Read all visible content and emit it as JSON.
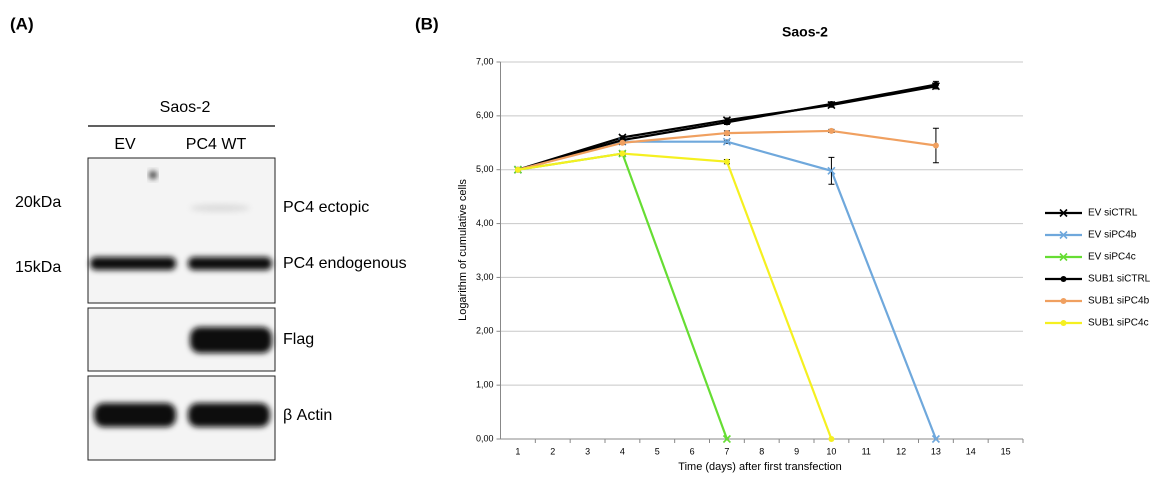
{
  "panel_a": {
    "label": "(A)",
    "cell_line": "Saos-2",
    "lanes": [
      "EV",
      "PC4 WT"
    ],
    "markers": [
      "20kDa",
      "15kDa"
    ],
    "bands": [
      "PC4 ectopic",
      "PC4 endogenous",
      "Flag",
      "β Actin"
    ]
  },
  "panel_b_label": "(B)",
  "chart_data": {
    "type": "line",
    "title": "Saos-2",
    "x_label": "Time (days) after first transfection",
    "y_label": "Logarithm of cumulative cells",
    "x": [
      1,
      4,
      7,
      10,
      13
    ],
    "xlim": [
      0.5,
      15.5
    ],
    "xticks": [
      1,
      2,
      3,
      4,
      5,
      6,
      7,
      8,
      9,
      10,
      11,
      12,
      13,
      14,
      15
    ],
    "ylim": [
      0,
      7
    ],
    "yticks": [
      {
        "value": 0,
        "label": "0,00"
      },
      {
        "value": 1,
        "label": "1,00"
      },
      {
        "value": 2,
        "label": "2,00"
      },
      {
        "value": 3,
        "label": "3,00"
      },
      {
        "value": 4,
        "label": "4,00"
      },
      {
        "value": 5,
        "label": "5,00"
      },
      {
        "value": 6,
        "label": "6,00"
      },
      {
        "value": 7,
        "label": "7,00"
      }
    ],
    "grid": true,
    "legend": "right",
    "series": [
      {
        "name": "EV siCTRL",
        "color": "#000000",
        "marker": "x",
        "values": [
          5.0,
          5.6,
          5.92,
          6.2,
          6.55
        ],
        "errors": [
          null,
          0.03,
          0.04,
          0.04,
          0.05
        ]
      },
      {
        "name": "EV siPC4b",
        "color": "#6fa8dc",
        "marker": "x",
        "values": [
          5.0,
          5.52,
          5.52,
          4.98,
          0
        ],
        "errors": [
          null,
          null,
          0.03,
          0.25,
          null
        ]
      },
      {
        "name": "EV siPC4c",
        "color": "#66dd33",
        "marker": "x",
        "values": [
          5.0,
          5.3,
          0,
          null,
          null
        ],
        "errors": [
          null,
          0.04,
          null,
          null,
          null
        ]
      },
      {
        "name": "SUB1 siCTRL",
        "color": "#000000",
        "marker": "circle",
        "values": [
          5.0,
          5.55,
          5.88,
          6.22,
          6.58
        ],
        "errors": [
          null,
          0.03,
          0.04,
          0.04,
          0.06
        ]
      },
      {
        "name": "SUB1 siPC4b",
        "color": "#f0a060",
        "marker": "circle",
        "values": [
          5.0,
          5.5,
          5.68,
          5.72,
          5.45
        ],
        "errors": [
          null,
          0.03,
          0.04,
          0.03,
          0.32
        ]
      },
      {
        "name": "SUB1 siPC4c",
        "color": "#f5f020",
        "marker": "circle",
        "values": [
          5.0,
          5.3,
          5.15,
          0,
          null
        ],
        "errors": [
          null,
          0.03,
          0.04,
          null,
          null
        ]
      }
    ]
  }
}
